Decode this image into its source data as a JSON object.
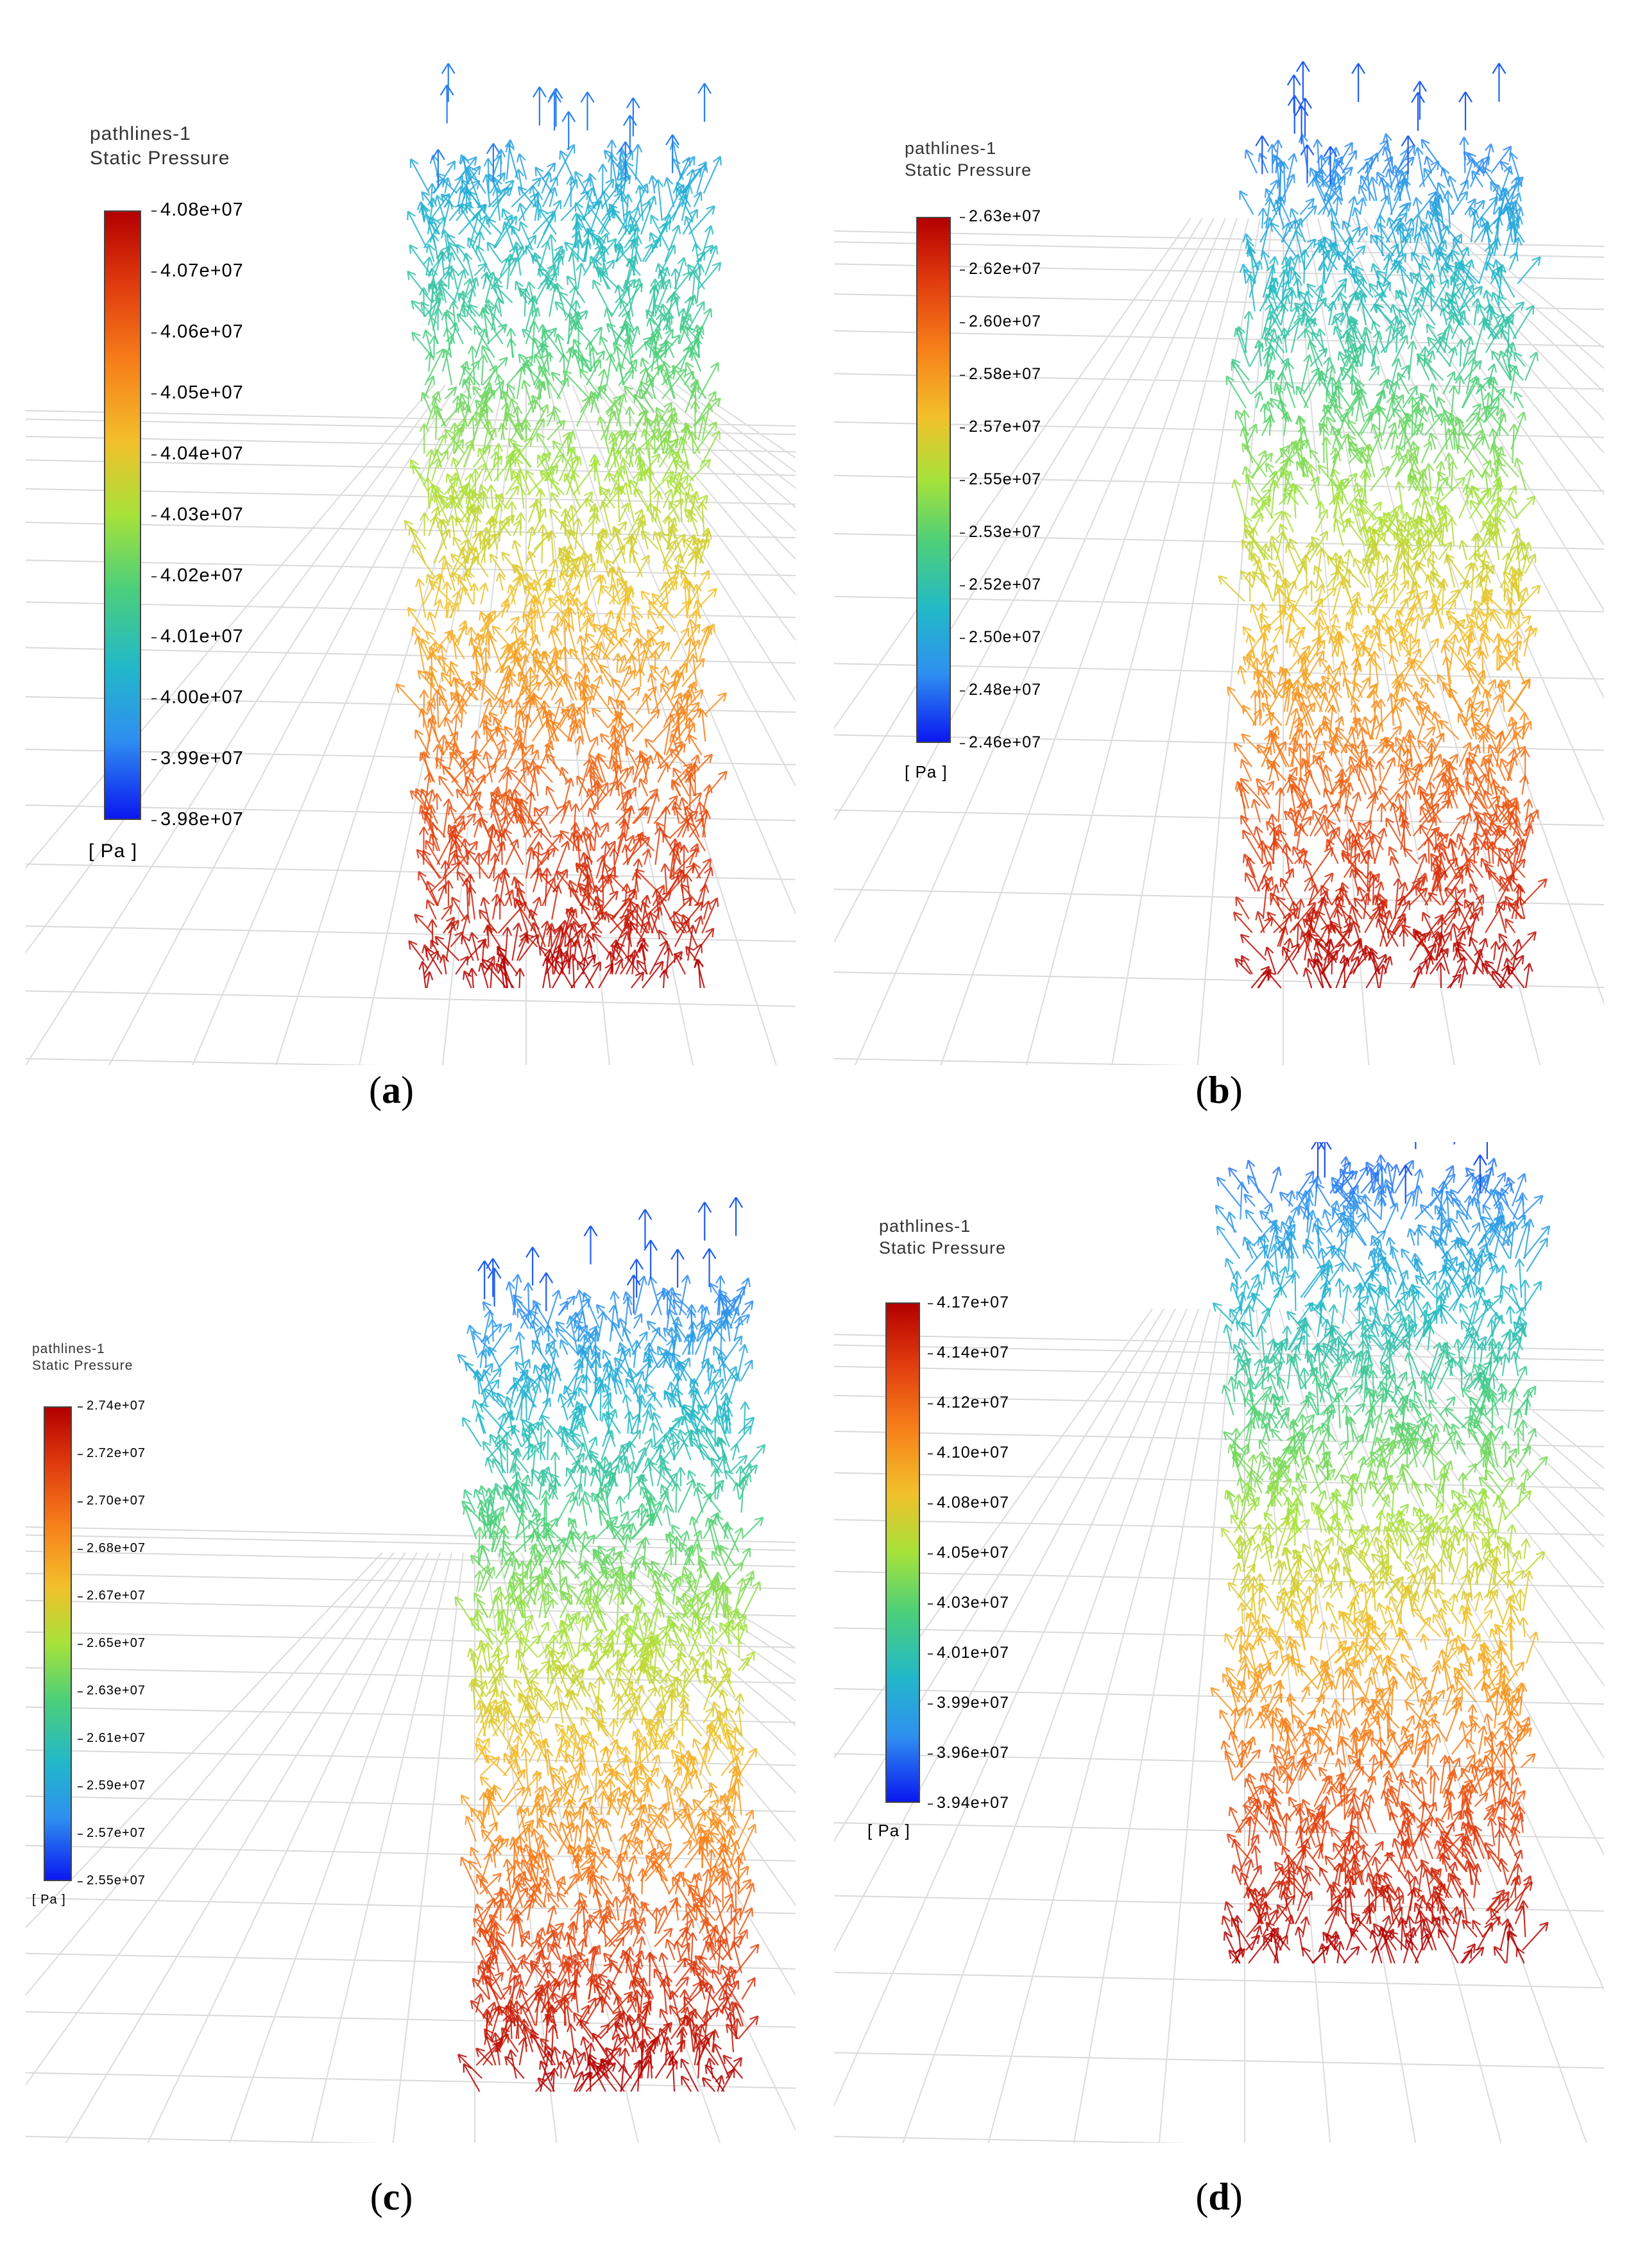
{
  "panels": [
    {
      "id": "a",
      "caption_letter": "a",
      "legend_title": "pathlines-1",
      "legend_subtitle": "Static Pressure",
      "ticks": [
        "4.08e+07",
        "4.07e+07",
        "4.06e+07",
        "4.05e+07",
        "4.04e+07",
        "4.03e+07",
        "4.02e+07",
        "4.01e+07",
        "4.00e+07",
        "3.99e+07",
        "3.98e+07"
      ],
      "unit": "[ Pa ]"
    },
    {
      "id": "b",
      "caption_letter": "b",
      "legend_title": "pathlines-1",
      "legend_subtitle": "Static Pressure",
      "ticks": [
        "2.63e+07",
        "2.62e+07",
        "2.60e+07",
        "2.58e+07",
        "2.57e+07",
        "2.55e+07",
        "2.53e+07",
        "2.52e+07",
        "2.50e+07",
        "2.48e+07",
        "2.46e+07"
      ],
      "unit": "[ Pa ]"
    },
    {
      "id": "c",
      "caption_letter": "c",
      "legend_title": "pathlines-1",
      "legend_subtitle": "Static Pressure",
      "ticks": [
        "2.74e+07",
        "2.72e+07",
        "2.70e+07",
        "2.68e+07",
        "2.67e+07",
        "2.65e+07",
        "2.63e+07",
        "2.61e+07",
        "2.59e+07",
        "2.57e+07",
        "2.55e+07"
      ],
      "unit": "[ Pa ]"
    },
    {
      "id": "d",
      "caption_letter": "d",
      "legend_title": "pathlines-1",
      "legend_subtitle": "Static Pressure",
      "ticks": [
        "4.17e+07",
        "4.14e+07",
        "4.12e+07",
        "4.10e+07",
        "4.08e+07",
        "4.05e+07",
        "4.03e+07",
        "4.01e+07",
        "3.99e+07",
        "3.96e+07",
        "3.94e+07"
      ],
      "unit": "[ Pa ]"
    }
  ]
}
